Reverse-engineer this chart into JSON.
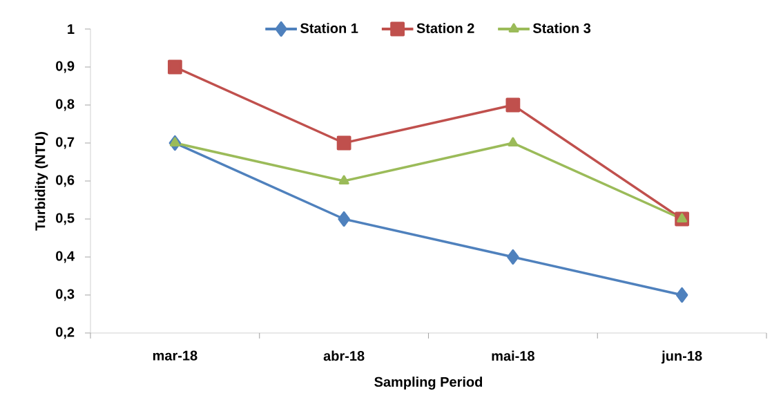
{
  "chart_data": {
    "type": "line",
    "xlabel": "Sampling Period",
    "ylabel": "Turbidity (NTU)",
    "categories": [
      "mar-18",
      "abr-18",
      "mai-18",
      "jun-18"
    ],
    "series": [
      {
        "name": "Station 1",
        "color": "#4f81bd",
        "marker": "diamond",
        "values": [
          0.7,
          0.5,
          0.4,
          0.3
        ]
      },
      {
        "name": "Station 2",
        "color": "#c0504d",
        "marker": "square",
        "values": [
          0.9,
          0.7,
          0.8,
          0.5
        ]
      },
      {
        "name": "Station 3",
        "color": "#9bbb59",
        "marker": "triangle",
        "values": [
          0.7,
          0.6,
          0.7,
          0.5
        ]
      }
    ],
    "ylim": [
      0.2,
      1
    ],
    "yticks": [
      {
        "value": 0.2,
        "label": "0,2"
      },
      {
        "value": 0.3,
        "label": "0,3"
      },
      {
        "value": 0.4,
        "label": "0,4"
      },
      {
        "value": 0.5,
        "label": "0,5"
      },
      {
        "value": 0.6,
        "label": "0,6"
      },
      {
        "value": 0.7,
        "label": "0,7"
      },
      {
        "value": 0.8,
        "label": "0,8"
      },
      {
        "value": 0.9,
        "label": "0,9"
      },
      {
        "value": 1,
        "label": "1"
      }
    ],
    "grid": false,
    "legend": "top",
    "line_style": "solid"
  }
}
